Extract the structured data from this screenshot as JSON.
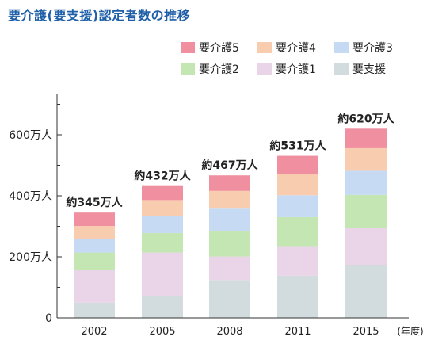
{
  "chart_data": {
    "type": "bar",
    "stacked": true,
    "title": "要介護(要支援)認定者数の推移",
    "x_unit": "(年度)",
    "categories": [
      "2002",
      "2005",
      "2008",
      "2011",
      "2015"
    ],
    "y_ticks": [
      "0",
      "200万人",
      "400万人",
      "600万人"
    ],
    "ylim": [
      0,
      700
    ],
    "grid": false,
    "legend_position": "top-right",
    "totals_labels": [
      "約345万人",
      "約432万人",
      "約467万人",
      "約531万人",
      "約620万人"
    ],
    "series": [
      {
        "name": "要支援",
        "color": "#d2dbdd",
        "values": [
          50,
          71,
          124,
          138,
          174
        ]
      },
      {
        "name": "要介護1",
        "color": "#ead4e8",
        "values": [
          106,
          143,
          77,
          97,
          121
        ]
      },
      {
        "name": "要介護2",
        "color": "#c4e6b2",
        "values": [
          58,
          64,
          83,
          95,
          108
        ]
      },
      {
        "name": "要介護3",
        "color": "#c7daf3",
        "values": [
          44,
          56,
          74,
          72,
          79
        ]
      },
      {
        "name": "要介護4",
        "color": "#f8ccae",
        "values": [
          43,
          52,
          58,
          68,
          74
        ]
      },
      {
        "name": "要介護5",
        "color": "#f08fa0",
        "values": [
          44,
          46,
          51,
          61,
          64
        ]
      }
    ]
  }
}
